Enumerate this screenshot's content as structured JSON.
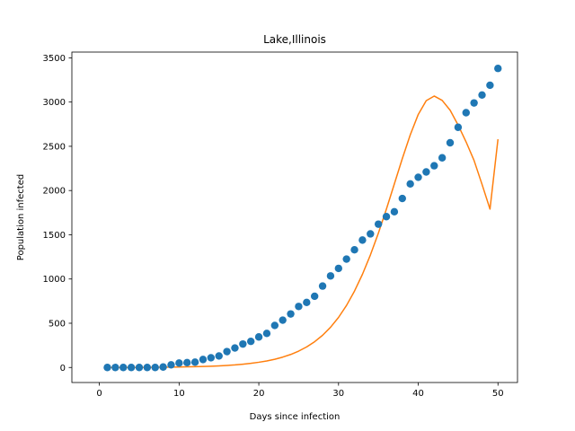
{
  "chart_data": {
    "type": "scatter",
    "title": "Lake,Illinois",
    "xlabel": "Days since infection",
    "ylabel": "Population infected",
    "xlim": [
      -3.45,
      52.45
    ],
    "ylim": [
      -170,
      3565
    ],
    "xticks": [
      0,
      10,
      20,
      30,
      40,
      50
    ],
    "yticks": [
      0,
      500,
      1000,
      1500,
      2000,
      2500,
      3000,
      3500
    ],
    "grid": false,
    "legend": "none",
    "series": [
      {
        "kind": "scatter",
        "color": "#1f77b4",
        "x": [
          1,
          2,
          3,
          4,
          5,
          6,
          7,
          8,
          9,
          10,
          11,
          12,
          13,
          14,
          15,
          16,
          17,
          18,
          19,
          20,
          21,
          22,
          23,
          24,
          25,
          26,
          27,
          28,
          29,
          30,
          31,
          32,
          33,
          34,
          35,
          36,
          37,
          38,
          39,
          40,
          41,
          42,
          43,
          44,
          45,
          46,
          47,
          48,
          49,
          50
        ],
        "y": [
          0,
          0,
          0,
          0,
          0,
          0,
          0,
          5,
          30,
          50,
          55,
          60,
          90,
          110,
          130,
          180,
          220,
          265,
          295,
          345,
          385,
          475,
          535,
          605,
          690,
          735,
          805,
          920,
          1035,
          1120,
          1225,
          1330,
          1440,
          1510,
          1620,
          1705,
          1760,
          1910,
          2075,
          2150,
          2210,
          2280,
          2370,
          2540,
          2715,
          2880,
          2990,
          3080,
          3190,
          3380
        ]
      },
      {
        "kind": "line",
        "color": "#ff7f0e",
        "x": [
          1,
          2,
          3,
          4,
          5,
          6,
          7,
          8,
          9,
          10,
          11,
          12,
          13,
          14,
          15,
          16,
          17,
          18,
          19,
          20,
          21,
          22,
          23,
          24,
          25,
          26,
          27,
          28,
          29,
          30,
          31,
          32,
          33,
          34,
          35,
          36,
          37,
          38,
          39,
          40,
          41,
          42,
          43,
          44,
          45,
          46,
          47,
          48,
          49,
          50
        ],
        "y": [
          0,
          0,
          0,
          0,
          1,
          1,
          2,
          3,
          4,
          5,
          7,
          9,
          11,
          14,
          18,
          23,
          29,
          37,
          47,
          59,
          74,
          93,
          117,
          147,
          185,
          232,
          291,
          364,
          455,
          566,
          701,
          863,
          1053,
          1272,
          1519,
          1789,
          2074,
          2361,
          2630,
          2860,
          3016,
          3068,
          3019,
          2908,
          2740,
          2550,
          2340,
          2070,
          1790,
          2580
        ]
      }
    ]
  }
}
